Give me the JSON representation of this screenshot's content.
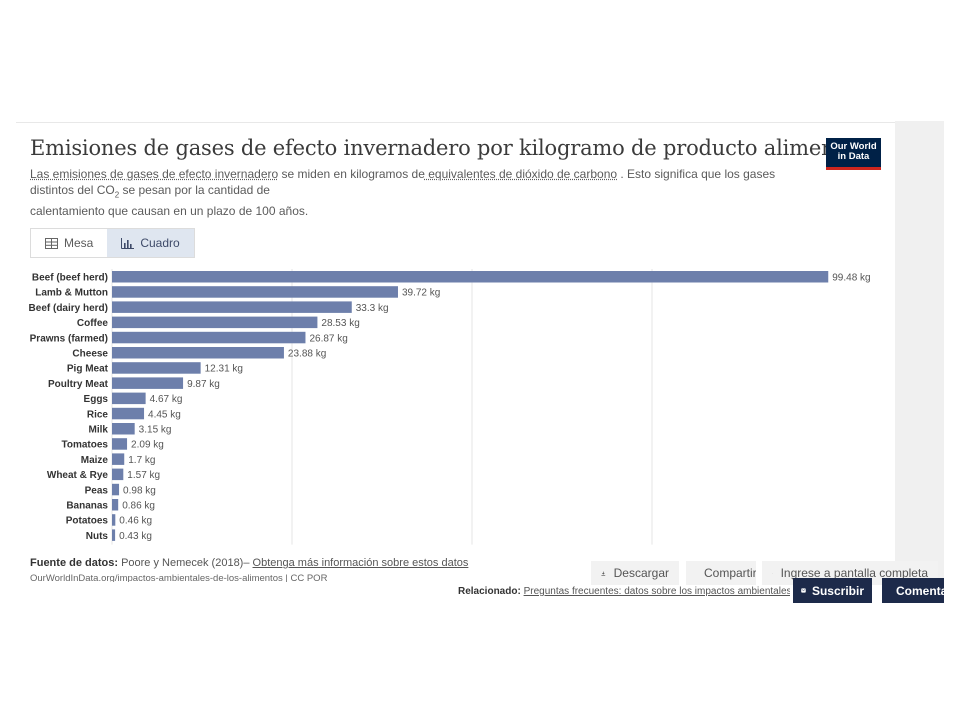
{
  "title": "Emisiones de gases de efecto invernadero por kilogramo de producto alimenticio",
  "subtitle": {
    "part1": "Las emisiones de gases de efecto invernadero",
    "part2": " se miden en kilogramos de",
    "part3": " equivalentes de dióxido de carbono",
    "part4": " . Esto significa que los gases distintos del CO",
    "sub2": "2",
    "part5": " se pesan por la cantidad de",
    "part6": "calentamiento que causan en un plazo de 100 años."
  },
  "logo": {
    "line1": "Our World",
    "line2": "in Data",
    "color": "#002147",
    "accent": "#ce261e"
  },
  "tabs": [
    {
      "label": "Mesa",
      "icon": "table-icon"
    },
    {
      "label": "Cuadro",
      "icon": "chart-icon"
    }
  ],
  "chart_data": {
    "type": "bar",
    "orientation": "horizontal",
    "unit": "kg",
    "color": "#6d7fab",
    "grid": true,
    "categories": [
      "Beef (beef herd)",
      "Lamb & Mutton",
      "Beef (dairy herd)",
      "Coffee",
      "Prawns (farmed)",
      "Cheese",
      "Pig Meat",
      "Poultry Meat",
      "Eggs",
      "Rice",
      "Milk",
      "Tomatoes",
      "Maize",
      "Wheat & Rye",
      "Peas",
      "Bananas",
      "Potatoes",
      "Nuts"
    ],
    "values": [
      99.48,
      39.72,
      33.3,
      28.53,
      26.87,
      23.88,
      12.31,
      9.87,
      4.67,
      4.45,
      3.15,
      2.09,
      1.7,
      1.57,
      0.98,
      0.86,
      0.46,
      0.43
    ],
    "labels": [
      "99.48 kg",
      "39.72 kg",
      "33.3 kg",
      "28.53 kg",
      "26.87 kg",
      "23.88 kg",
      "12.31 kg",
      "9.87 kg",
      "4.67 kg",
      "4.45 kg",
      "3.15 kg",
      "2.09 kg",
      "1.7 kg",
      "1.57 kg",
      "0.98 kg",
      "0.86 kg",
      "0.46 kg",
      "0.43 kg"
    ],
    "xlim": [
      0,
      100
    ]
  },
  "source": {
    "label": "Fuente de datos:",
    "text": " Poore y Nemecek (2018)– ",
    "link": "Obtenga más información sobre estos datos"
  },
  "url_line": "OurWorldInData.org/impactos-ambientales-de-los-alimentos | CC POR",
  "buttons": {
    "download": "Descargar",
    "share": "Compartir",
    "fullscreen": "Ingrese a pantalla completa"
  },
  "related": {
    "label": "Relacionado:",
    "link": "Preguntas frecuentes: datos sobre los impactos ambientales"
  },
  "subscribe": "Suscribir",
  "comment": "Comentar"
}
